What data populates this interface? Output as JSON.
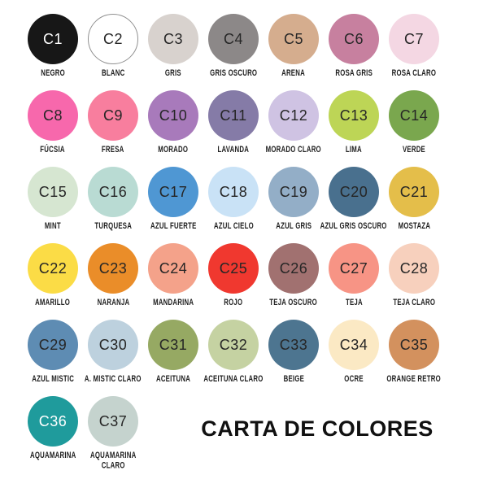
{
  "title": "CARTA DE COLORES",
  "default_text_color": "#262626",
  "swatches": [
    {
      "code": "C1",
      "name": "NEGRO",
      "color": "#171717",
      "text_color": "#ffffff",
      "border": ""
    },
    {
      "code": "C2",
      "name": "BLANC",
      "color": "#ffffff",
      "text_color": "#262626",
      "border": "#909090"
    },
    {
      "code": "C3",
      "name": "GRIS",
      "color": "#d8d2ce",
      "text_color": "#262626",
      "border": ""
    },
    {
      "code": "C4",
      "name": "GRIS OSCURO",
      "color": "#8c8888",
      "text_color": "#262626",
      "border": ""
    },
    {
      "code": "C5",
      "name": "ARENA",
      "color": "#d5ad8e",
      "text_color": "#262626",
      "border": ""
    },
    {
      "code": "C6",
      "name": "ROSA GRIS",
      "color": "#c7809f",
      "text_color": "#262626",
      "border": ""
    },
    {
      "code": "C7",
      "name": "ROSA CLARO",
      "color": "#f4d7e3",
      "text_color": "#262626",
      "border": ""
    },
    {
      "code": "C8",
      "name": "FÚCSIA",
      "color": "#f768ac",
      "text_color": "#262626",
      "border": ""
    },
    {
      "code": "C9",
      "name": "FRESA",
      "color": "#f87e9e",
      "text_color": "#262626",
      "border": ""
    },
    {
      "code": "C10",
      "name": "MORADO",
      "color": "#a87abb",
      "text_color": "#262626",
      "border": ""
    },
    {
      "code": "C11",
      "name": "LAVANDA",
      "color": "#857ba7",
      "text_color": "#262626",
      "border": ""
    },
    {
      "code": "C12",
      "name": "MORADO CLARO",
      "color": "#cfc3e3",
      "text_color": "#262626",
      "border": ""
    },
    {
      "code": "C13",
      "name": "LIMA",
      "color": "#bdd556",
      "text_color": "#262626",
      "border": ""
    },
    {
      "code": "C14",
      "name": "VERDE",
      "color": "#7aa74e",
      "text_color": "#262626",
      "border": ""
    },
    {
      "code": "C15",
      "name": "MINT",
      "color": "#d6e6d1",
      "text_color": "#262626",
      "border": ""
    },
    {
      "code": "C16",
      "name": "TURQUESA",
      "color": "#b9dbd3",
      "text_color": "#262626",
      "border": ""
    },
    {
      "code": "C17",
      "name": "AZUL FUERTE",
      "color": "#4f97d3",
      "text_color": "#262626",
      "border": ""
    },
    {
      "code": "C18",
      "name": "AZUL CIELO",
      "color": "#c9e2f6",
      "text_color": "#262626",
      "border": ""
    },
    {
      "code": "C19",
      "name": "AZUL GRIS",
      "color": "#93aec7",
      "text_color": "#262626",
      "border": ""
    },
    {
      "code": "C20",
      "name": "AZUL GRIS OSCURO",
      "color": "#49708e",
      "text_color": "#262626",
      "border": ""
    },
    {
      "code": "C21",
      "name": "MOSTAZA",
      "color": "#e4be4a",
      "text_color": "#262626",
      "border": ""
    },
    {
      "code": "C22",
      "name": "AMARILLO",
      "color": "#fbdc46",
      "text_color": "#262626",
      "border": ""
    },
    {
      "code": "C23",
      "name": "NARANJA",
      "color": "#ea8d29",
      "text_color": "#262626",
      "border": ""
    },
    {
      "code": "C24",
      "name": "MANDARINA",
      "color": "#f4a28a",
      "text_color": "#262626",
      "border": ""
    },
    {
      "code": "C25",
      "name": "ROJO",
      "color": "#f0382f",
      "text_color": "#262626",
      "border": ""
    },
    {
      "code": "C26",
      "name": "TEJA OSCURO",
      "color": "#a17170",
      "text_color": "#262626",
      "border": ""
    },
    {
      "code": "C27",
      "name": "TEJA",
      "color": "#f79485",
      "text_color": "#262626",
      "border": ""
    },
    {
      "code": "C28",
      "name": "TEJA CLARO",
      "color": "#f7d0bd",
      "text_color": "#262626",
      "border": ""
    },
    {
      "code": "C29",
      "name": "AZUL MISTIC",
      "color": "#5e8cb3",
      "text_color": "#262626",
      "border": ""
    },
    {
      "code": "C30",
      "name": "A. MISTIC CLARO",
      "color": "#bdd1de",
      "text_color": "#262626",
      "border": ""
    },
    {
      "code": "C31",
      "name": "ACEITUNA",
      "color": "#96a963",
      "text_color": "#262626",
      "border": ""
    },
    {
      "code": "C32",
      "name": "ACEITUNA CLARO",
      "color": "#c5d2a2",
      "text_color": "#262626",
      "border": ""
    },
    {
      "code": "C33",
      "name": "BEIGE",
      "color": "#4d7590",
      "text_color": "#262626",
      "border": ""
    },
    {
      "code": "C34",
      "name": "OCRE",
      "color": "#fbe9c4",
      "text_color": "#262626",
      "border": ""
    },
    {
      "code": "C35",
      "name": "ORANGE RETRO",
      "color": "#d3915e",
      "text_color": "#262626",
      "border": ""
    },
    {
      "code": "C36",
      "name": "AQUAMARINA",
      "color": "#1f9b9c",
      "text_color": "#ffffff",
      "border": ""
    },
    {
      "code": "C37",
      "name": "AQUAMARINA\nCLARO",
      "color": "#c5d3ce",
      "text_color": "#262626",
      "border": ""
    }
  ]
}
